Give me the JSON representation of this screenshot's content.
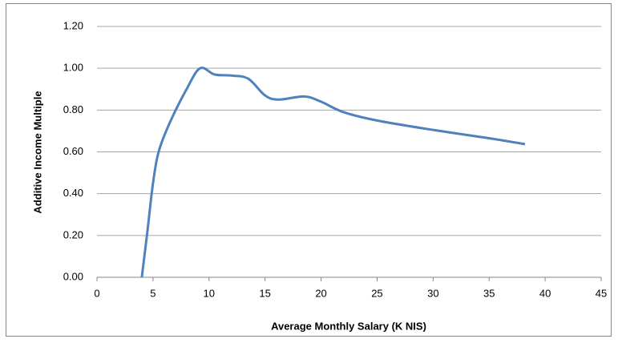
{
  "chart_data": {
    "type": "line",
    "xlabel": "Average Monthly Salary (K NIS)",
    "ylabel": "Additive Income Multiple",
    "x": [
      4,
      4.5,
      5,
      5.5,
      6.5,
      8,
      9.2,
      10.5,
      12,
      13.5,
      15,
      16.2,
      18.5,
      20,
      22,
      25,
      30,
      35,
      38.2
    ],
    "series": [
      {
        "name": "Additive Income Multiple",
        "color": "#4f81bd",
        "values": [
          0,
          0.22,
          0.45,
          0.6,
          0.74,
          0.9,
          1.0,
          0.97,
          0.965,
          0.95,
          0.87,
          0.85,
          0.865,
          0.84,
          0.79,
          0.75,
          0.705,
          0.665,
          0.637
        ]
      }
    ],
    "xlim": [
      0,
      45
    ],
    "xticks": [
      0,
      5,
      10,
      15,
      20,
      25,
      30,
      35,
      40,
      45
    ],
    "ylim": [
      0,
      1.2
    ],
    "yticks": [
      {
        "value": 0,
        "label": "0.00"
      },
      {
        "value": 0.2,
        "label": "0.20"
      },
      {
        "value": 0.4,
        "label": "0.40"
      },
      {
        "value": 0.6,
        "label": "0.60"
      },
      {
        "value": 0.8,
        "label": "0.80"
      },
      {
        "value": 1.0,
        "label": "1.00"
      },
      {
        "value": 1.2,
        "label": "1.20"
      }
    ],
    "grid": true
  }
}
